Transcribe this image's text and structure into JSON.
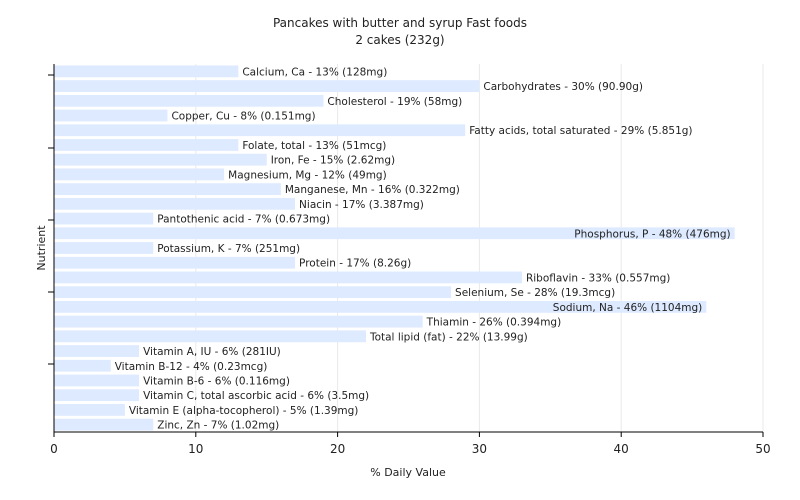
{
  "chart_data": {
    "type": "bar",
    "orientation": "horizontal",
    "title": "Pancakes with butter and syrup Fast foods",
    "subtitle": "2 cakes (232g)",
    "xlabel": "% Daily Value",
    "ylabel": "Nutrient",
    "xlim": [
      0,
      50
    ],
    "xticks": [
      0,
      10,
      20,
      30,
      40,
      50
    ],
    "grid": true,
    "bar_color": "#ddeaff",
    "categories": [
      "Calcium, Ca",
      "Carbohydrates",
      "Cholesterol",
      "Copper, Cu",
      "Fatty acids, total saturated",
      "Folate, total",
      "Iron, Fe",
      "Magnesium, Mg",
      "Manganese, Mn",
      "Niacin",
      "Pantothenic acid",
      "Phosphorus, P",
      "Potassium, K",
      "Protein",
      "Riboflavin",
      "Selenium, Se",
      "Sodium, Na",
      "Thiamin",
      "Total lipid (fat)",
      "Vitamin A, IU",
      "Vitamin B-12",
      "Vitamin B-6",
      "Vitamin C, total ascorbic acid",
      "Vitamin E (alpha-tocopherol)",
      "Zinc, Zn"
    ],
    "values": [
      13,
      30,
      19,
      8,
      29,
      13,
      15,
      12,
      16,
      17,
      7,
      48,
      7,
      17,
      33,
      28,
      46,
      26,
      22,
      6,
      4,
      6,
      6,
      5,
      7
    ],
    "labels": [
      "Calcium, Ca - 13% (128mg)",
      "Carbohydrates - 30% (90.90g)",
      "Cholesterol - 19% (58mg)",
      "Copper, Cu - 8% (0.151mg)",
      "Fatty acids, total saturated - 29% (5.851g)",
      "Folate, total - 13% (51mcg)",
      "Iron, Fe - 15% (2.62mg)",
      "Magnesium, Mg - 12% (49mg)",
      "Manganese, Mn - 16% (0.322mg)",
      "Niacin - 17% (3.387mg)",
      "Pantothenic acid - 7% (0.673mg)",
      "Phosphorus, P - 48% (476mg)",
      "Potassium, K - 7% (251mg)",
      "Protein - 17% (8.26g)",
      "Riboflavin - 33% (0.557mg)",
      "Selenium, Se - 28% (19.3mcg)",
      "Sodium, Na - 46% (1104mg)",
      "Thiamin - 26% (0.394mg)",
      "Total lipid (fat) - 22% (13.99g)",
      "Vitamin A, IU - 6% (281IU)",
      "Vitamin B-12 - 4% (0.23mcg)",
      "Vitamin B-6 - 6% (0.116mg)",
      "Vitamin C, total ascorbic acid - 6% (3.5mg)",
      "Vitamin E (alpha-tocopherol) - 5% (1.39mg)",
      "Zinc, Zn - 7% (1.02mg)"
    ]
  }
}
